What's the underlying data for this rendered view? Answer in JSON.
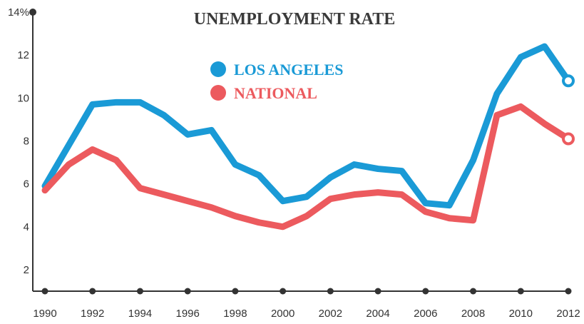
{
  "chart_data": {
    "type": "line",
    "title": "UNEMPLOYMENT RATE",
    "xlabel": "",
    "ylabel": "",
    "x": [
      1990,
      1991,
      1992,
      1993,
      1994,
      1995,
      1996,
      1997,
      1998,
      1999,
      2000,
      2001,
      2002,
      2003,
      2004,
      2005,
      2006,
      2007,
      2008,
      2009,
      2010,
      2011,
      2012
    ],
    "xticks": [
      "1990",
      "1992",
      "1994",
      "1996",
      "1998",
      "2000",
      "2002",
      "2004",
      "2006",
      "2008",
      "2010",
      "2012"
    ],
    "yticks": [
      "14%",
      "12",
      "10",
      "8",
      "6",
      "4",
      "2"
    ],
    "ylim": [
      1,
      14
    ],
    "xlim": [
      1990,
      2012
    ],
    "series": [
      {
        "name": "LOS ANGELES",
        "color": "#1a9ad6",
        "values": [
          5.9,
          7.8,
          9.7,
          9.8,
          9.8,
          9.2,
          8.3,
          8.5,
          6.9,
          6.4,
          5.2,
          5.4,
          6.3,
          6.9,
          6.7,
          6.6,
          5.1,
          5.0,
          7.1,
          10.2,
          11.9,
          12.4,
          10.8
        ]
      },
      {
        "name": "NATIONAL",
        "color": "#ec5a5e",
        "values": [
          5.7,
          6.9,
          7.6,
          7.1,
          5.8,
          5.5,
          5.2,
          4.9,
          4.5,
          4.2,
          4.0,
          4.5,
          5.3,
          5.5,
          5.6,
          5.5,
          4.7,
          4.4,
          4.3,
          9.2,
          9.6,
          8.8,
          8.1
        ]
      }
    ],
    "legend_position": "top-center",
    "grid": false
  }
}
